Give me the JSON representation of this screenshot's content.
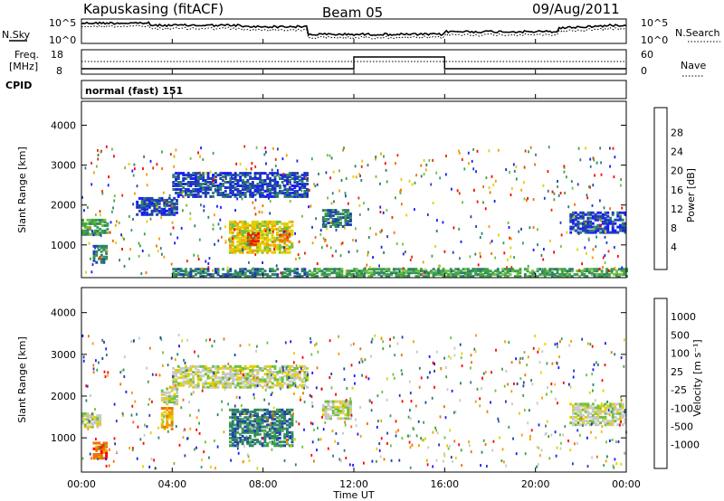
{
  "header": {
    "station": "Kapuskasing (fitACF)",
    "beam": "Beam 05",
    "date": "09/Aug/2011"
  },
  "noise_panel": {
    "left_label": "N.Sky",
    "right_label": "N.Search",
    "ticks_left": [
      "10^5",
      "10^0"
    ],
    "ticks_right": [
      "10^5",
      "10^0"
    ]
  },
  "freq_panel": {
    "left_label_1": "Freq.",
    "left_label_2": "[MHz]",
    "right_label": "Nave",
    "ticks_left": [
      "18",
      "8"
    ],
    "ticks_right": [
      "60",
      "0"
    ]
  },
  "cpid": {
    "label": "CPID",
    "value": "normal (fast) 151"
  },
  "chart_data": [
    {
      "type": "heatmap",
      "name": "power",
      "ylabel": "Slant Range [km]",
      "ylim": [
        180,
        4600
      ],
      "yticks": [
        "1000",
        "2000",
        "3000",
        "4000"
      ],
      "colorbar": {
        "label": "Power [dB]",
        "ticks": [
          "4",
          "8",
          "12",
          "16",
          "20",
          "24",
          "28"
        ],
        "colors": [
          "#1a1aff",
          "#2040b0",
          "#2f7f6f",
          "#3fa04a",
          "#70c040",
          "#e0d000",
          "#f0a000",
          "#f07000",
          "#e03000",
          "#ff0000"
        ]
      },
      "regions": [
        {
          "t0": 0.0,
          "t1": 1.2,
          "r0": 1250,
          "r1": 1650,
          "level": 3
        },
        {
          "t0": 0.5,
          "t1": 1.1,
          "r0": 550,
          "r1": 1000,
          "level": 2
        },
        {
          "t0": 2.4,
          "t1": 4.2,
          "r0": 1750,
          "r1": 2200,
          "level": 1
        },
        {
          "t0": 4.0,
          "t1": 9.9,
          "r0": 2200,
          "r1": 2800,
          "level": 1
        },
        {
          "t0": 6.5,
          "t1": 9.3,
          "r0": 800,
          "r1": 1600,
          "level": 5
        },
        {
          "t0": 7.3,
          "t1": 7.8,
          "r0": 1000,
          "r1": 1300,
          "level": 8
        },
        {
          "t0": 8.7,
          "t1": 9.1,
          "r0": 1100,
          "r1": 1350,
          "level": 7
        },
        {
          "t0": 10.6,
          "t1": 11.9,
          "r0": 1450,
          "r1": 1900,
          "level": 2
        },
        {
          "t0": 21.5,
          "t1": 24.0,
          "r0": 1300,
          "r1": 1800,
          "level": 1
        },
        {
          "t0": 4.0,
          "t1": 10.0,
          "r0": 200,
          "r1": 420,
          "level": 2
        },
        {
          "t0": 10.0,
          "t1": 24.0,
          "r0": 200,
          "r1": 400,
          "level": 3
        }
      ]
    },
    {
      "type": "heatmap",
      "name": "velocity",
      "ylabel": "Slant Range [km]",
      "ylim": [
        180,
        4600
      ],
      "yticks": [
        "1000",
        "2000",
        "3000",
        "4000"
      ],
      "colorbar": {
        "label": "Velocity [m s⁻¹]",
        "ticks": [
          "1000",
          "500",
          "100",
          "25",
          "-25",
          "-100",
          "-500",
          "-1000"
        ],
        "colors": [
          "#1a1aff",
          "#2040b0",
          "#2f7f6f",
          "#3fa04a",
          "#70c040",
          "#c8c8c8",
          "#e0d000",
          "#f0a000",
          "#f07000",
          "#ff0000"
        ]
      },
      "regions": [
        {
          "t0": 0.0,
          "t1": 0.8,
          "r0": 1250,
          "r1": 1600,
          "level": 5
        },
        {
          "t0": 0.5,
          "t1": 1.1,
          "r0": 500,
          "r1": 900,
          "level": 8
        },
        {
          "t0": 3.5,
          "t1": 4.2,
          "r0": 1800,
          "r1": 2200,
          "level": 5
        },
        {
          "t0": 4.0,
          "t1": 9.9,
          "r0": 2200,
          "r1": 2700,
          "level": 5
        },
        {
          "t0": 6.5,
          "t1": 9.3,
          "r0": 800,
          "r1": 1700,
          "level": 2
        },
        {
          "t0": 10.6,
          "t1": 11.9,
          "r0": 1450,
          "r1": 1900,
          "level": 5
        },
        {
          "t0": 21.5,
          "t1": 24.0,
          "r0": 1300,
          "r1": 1800,
          "level": 5
        },
        {
          "t0": 3.5,
          "t1": 4.0,
          "r0": 1200,
          "r1": 1700,
          "level": 7
        }
      ]
    }
  ],
  "time_axis": {
    "label": "Time UT",
    "ticks": [
      "00:00",
      "04:00",
      "08:00",
      "12:00",
      "16:00",
      "20:00",
      "00:00"
    ],
    "range_hours": [
      0,
      24
    ]
  }
}
